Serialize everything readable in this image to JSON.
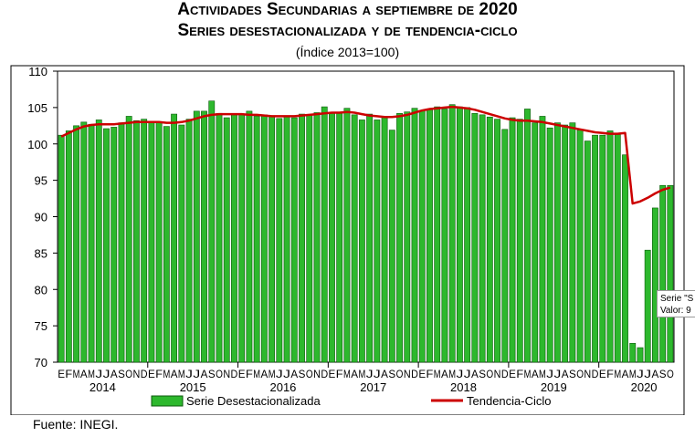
{
  "header": {
    "title_line1": "Actividades Secundarias a septiembre de 2020",
    "title_line2": "Series desestacionalizada y de tendencia-ciclo",
    "subtitle": "(Índice 2013=100)"
  },
  "footer": {
    "source": "Fuente: INEGI."
  },
  "tooltip": {
    "line1": "Serie \"S",
    "line2": "Valor: 9"
  },
  "colors": {
    "bar_fill": "#2db82d",
    "bar_stroke": "#0a5a0a",
    "trend": "#cc0000",
    "plot_bg": "#ffffff",
    "frame": "#000000"
  },
  "chart_data": {
    "type": "bar",
    "ylim": [
      70,
      110
    ],
    "yticks": [
      70,
      75,
      80,
      85,
      90,
      95,
      100,
      105,
      110
    ],
    "month_letters": [
      "E",
      "F",
      "M",
      "A",
      "M",
      "J",
      "J",
      "A",
      "S",
      "O",
      "N",
      "D"
    ],
    "years": [
      "2014",
      "2015",
      "2016",
      "2017",
      "2018",
      "2019",
      "2020"
    ],
    "grid": false,
    "legend_position": "bottom",
    "series": [
      {
        "name": "Serie Desestacionalizada",
        "type": "bar",
        "values": [
          101.2,
          101.8,
          102.5,
          103.0,
          102.7,
          103.3,
          102.1,
          102.3,
          102.9,
          103.8,
          103.2,
          103.4,
          102.9,
          102.9,
          102.4,
          104.1,
          102.6,
          103.4,
          104.5,
          104.5,
          105.9,
          104.2,
          103.6,
          104.0,
          104.1,
          104.5,
          103.8,
          104.0,
          103.8,
          103.5,
          103.8,
          103.6,
          104.1,
          104.0,
          104.3,
          105.1,
          104.2,
          104.2,
          104.9,
          104.0,
          103.3,
          104.1,
          103.3,
          103.8,
          101.9,
          104.2,
          104.4,
          104.9,
          104.6,
          104.7,
          105.1,
          104.8,
          105.4,
          105.1,
          105.0,
          104.2,
          104.0,
          103.7,
          103.4,
          102.0,
          103.6,
          103.4,
          104.8,
          102.9,
          103.8,
          102.2,
          102.9,
          102.6,
          102.9,
          101.9,
          100.4,
          101.2,
          101.2,
          101.8,
          101.3,
          98.5,
          72.6,
          72.0,
          85.4,
          91.2,
          94.3,
          94.3
        ],
        "last_month": "S 2020"
      },
      {
        "name": "Tendencia-Ciclo",
        "type": "line",
        "values": [
          101.0,
          101.5,
          102.0,
          102.4,
          102.6,
          102.7,
          102.7,
          102.7,
          102.8,
          102.9,
          103.0,
          103.0,
          103.0,
          103.0,
          102.9,
          102.9,
          103.0,
          103.2,
          103.5,
          103.8,
          104.0,
          104.1,
          104.1,
          104.1,
          104.1,
          104.0,
          104.0,
          103.9,
          103.8,
          103.8,
          103.8,
          103.8,
          103.9,
          104.0,
          104.1,
          104.2,
          104.3,
          104.3,
          104.4,
          104.3,
          104.1,
          103.9,
          103.8,
          103.7,
          103.7,
          103.8,
          104.0,
          104.3,
          104.6,
          104.8,
          104.9,
          105.0,
          105.1,
          105.0,
          104.9,
          104.7,
          104.4,
          104.1,
          103.8,
          103.5,
          103.3,
          103.2,
          103.2,
          103.1,
          103.0,
          102.8,
          102.6,
          102.4,
          102.2,
          102.0,
          101.8,
          101.6,
          101.5,
          101.4,
          101.4,
          101.5,
          91.8,
          92.1,
          92.6,
          93.2,
          93.7,
          94.0
        ]
      }
    ]
  }
}
